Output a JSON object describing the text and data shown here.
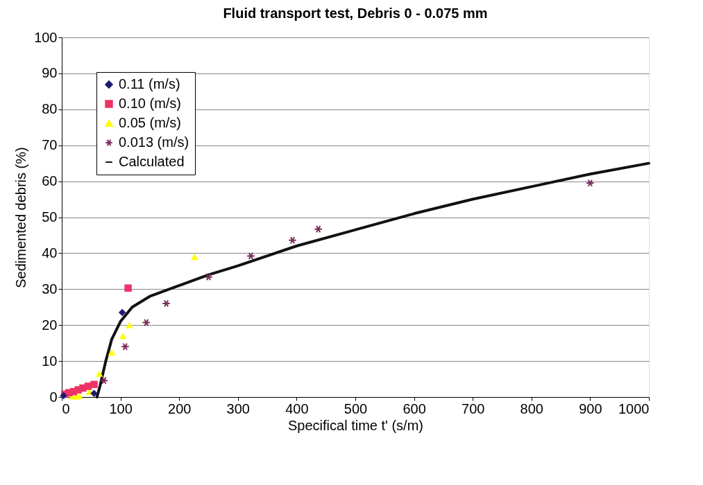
{
  "chart_data": {
    "type": "scatter",
    "title": "Fluid transport test, Debris  0 - 0.075 mm",
    "xlabel": "Specifical time t' (s/m)",
    "ylabel": "Sedimented debris (%)",
    "xlim": [
      0,
      1000
    ],
    "xticks": [
      0,
      100,
      200,
      300,
      400,
      500,
      600,
      700,
      800,
      900,
      1000
    ],
    "ylim": [
      0,
      100
    ],
    "yticks": [
      0,
      10,
      20,
      30,
      40,
      50,
      60,
      70,
      80,
      90,
      100
    ],
    "grid": "y",
    "legend": "top left",
    "series": [
      {
        "name": "0.11 (m/s)",
        "color": "#1c1c6e",
        "marker": "diamond",
        "x": [
          3,
          55,
          103
        ],
        "values": [
          0.4,
          1,
          23.5
        ]
      },
      {
        "name": "0.10 (m/s)",
        "color": "#ee3366",
        "marker": "square",
        "x": [
          5,
          12,
          20,
          28,
          36,
          45,
          55,
          113
        ],
        "values": [
          0.8,
          1.2,
          1.5,
          2,
          2.5,
          3,
          3.5,
          30.3
        ]
      },
      {
        "name": "0.05 (m/s)",
        "color": "#ffff00",
        "marker": "triangle",
        "x": [
          18,
          25,
          30,
          47,
          64,
          85,
          104,
          115,
          226
        ],
        "values": [
          0.2,
          0.2,
          0.3,
          1.5,
          6.5,
          12.4,
          17,
          20,
          39
        ]
      },
      {
        "name": "0.013 (m/s)",
        "color": "#7a2a5a",
        "marker": "cross",
        "x": [
          72,
          108,
          144,
          178,
          250,
          322,
          393,
          437,
          900
        ],
        "values": [
          4.6,
          14,
          20.7,
          26,
          33.4,
          39.2,
          43.6,
          46.7,
          59.5
        ]
      },
      {
        "name": "Calculated",
        "color": "#111111",
        "type": "line",
        "marker": "none",
        "line_style": "solid",
        "x": [
          60,
          65,
          75,
          85,
          100,
          120,
          150,
          200,
          250,
          300,
          400,
          500,
          600,
          700,
          800,
          900,
          1000
        ],
        "values": [
          0,
          3,
          10,
          16,
          21,
          25,
          28,
          31,
          34,
          36.5,
          42,
          46.5,
          51,
          55,
          58.5,
          62,
          65
        ]
      }
    ]
  }
}
